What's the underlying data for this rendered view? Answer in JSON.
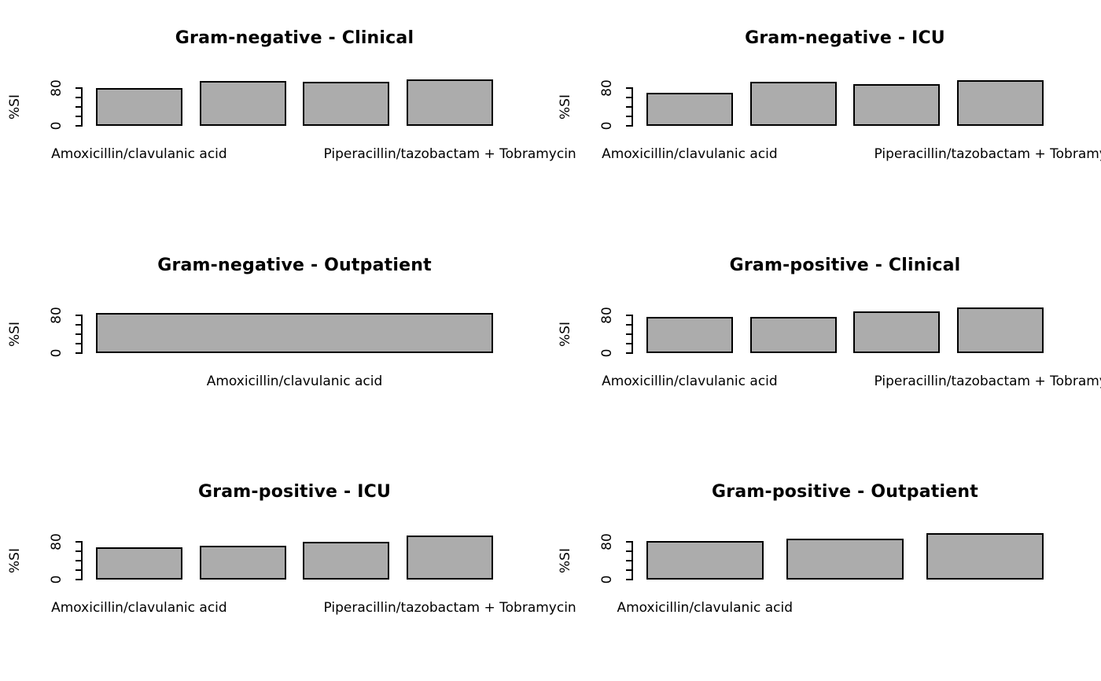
{
  "figure": {
    "background_color": "#ffffff",
    "text_color": "#000000",
    "bar_fill_color": "#ACACAC",
    "bar_border_color": "#000000",
    "ylabel": "%SI",
    "y_ticks": [
      0,
      20,
      40,
      60,
      80
    ],
    "y_tick_labels_shown": [
      "0",
      "80"
    ],
    "grid": "off",
    "legend": "none",
    "layout": "3 rows x 2 columns"
  },
  "chart_data": [
    {
      "type": "bar",
      "title": "Gram-negative - Clinical",
      "ylabel": "%SI",
      "ylim": [
        0,
        101
      ],
      "values": [
        80,
        95,
        93,
        99
      ],
      "visible_x_labels": [
        {
          "text": "Amoxicillin/clavulanic acid",
          "bar_index": 0
        },
        {
          "text": "Piperacillin/tazobactam + Tobramycin",
          "bar_index": 3
        }
      ]
    },
    {
      "type": "bar",
      "title": "Gram-negative - ICU",
      "ylabel": "%SI",
      "ylim": [
        0,
        101
      ],
      "values": [
        70,
        93,
        88,
        97
      ],
      "visible_x_labels": [
        {
          "text": "Amoxicillin/clavulanic acid",
          "bar_index": 0
        },
        {
          "text": "Piperacillin/tazobactam + Tobramycin",
          "bar_index": 3
        }
      ]
    },
    {
      "type": "bar",
      "title": "Gram-negative - Outpatient",
      "ylabel": "%SI",
      "ylim": [
        0,
        101
      ],
      "values": [
        85
      ],
      "visible_x_labels": [
        {
          "text": "Amoxicillin/clavulanic acid",
          "bar_index": 0
        }
      ]
    },
    {
      "type": "bar",
      "title": "Gram-positive - Clinical",
      "ylabel": "%SI",
      "ylim": [
        0,
        101
      ],
      "values": [
        77,
        76,
        88,
        96
      ],
      "visible_x_labels": [
        {
          "text": "Amoxicillin/clavulanic acid",
          "bar_index": 0
        },
        {
          "text": "Piperacillin/tazobactam + Tobramycin",
          "bar_index": 3
        }
      ]
    },
    {
      "type": "bar",
      "title": "Gram-positive - ICU",
      "ylabel": "%SI",
      "ylim": [
        0,
        101
      ],
      "values": [
        68,
        71,
        80,
        93
      ],
      "visible_x_labels": [
        {
          "text": "Amoxicillin/clavulanic acid",
          "bar_index": 0
        },
        {
          "text": "Piperacillin/tazobactam + Tobramycin",
          "bar_index": 3
        }
      ]
    },
    {
      "type": "bar",
      "title": "Gram-positive - Outpatient",
      "ylabel": "%SI",
      "ylim": [
        0,
        101
      ],
      "values": [
        82,
        87,
        99
      ],
      "visible_x_labels": [
        {
          "text": "Amoxicillin/clavulanic acid",
          "bar_index": 0
        }
      ]
    }
  ]
}
